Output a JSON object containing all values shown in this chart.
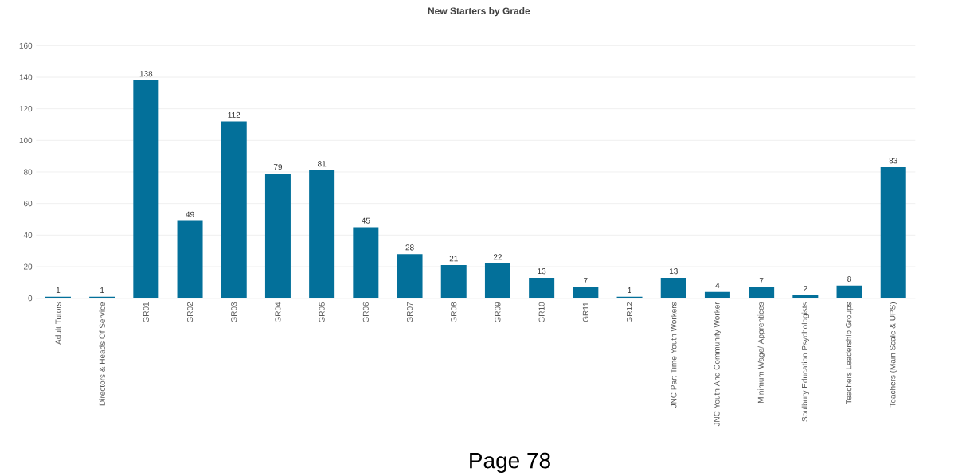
{
  "chart_data": {
    "type": "bar",
    "title": "New Starters by Grade",
    "categories": [
      "Adult Tutors",
      "Directors & Heads Of Service",
      "GR01",
      "GR02",
      "GR03",
      "GR04",
      "GR05",
      "GR06",
      "GR07",
      "GR08",
      "GR09",
      "GR10",
      "GR11",
      "GR12",
      "JNC Part Time Youth Workers",
      "JNC Youth And Community Worker",
      "Minimum Wage/ Apprentices",
      "Soulbury Education Psychologists",
      "Teachers Leadership Groups",
      "Teachers (Main Scale & UPS)"
    ],
    "values": [
      1,
      1,
      138,
      49,
      112,
      79,
      81,
      45,
      28,
      21,
      22,
      13,
      7,
      1,
      13,
      4,
      7,
      2,
      8,
      83
    ],
    "color": "#03709a",
    "ylim": [
      0,
      160
    ],
    "yticks": [
      0,
      20,
      40,
      60,
      80,
      100,
      120,
      140,
      160
    ],
    "grid": "y",
    "data_labels": true,
    "annotations": [
      "Page 78"
    ]
  }
}
